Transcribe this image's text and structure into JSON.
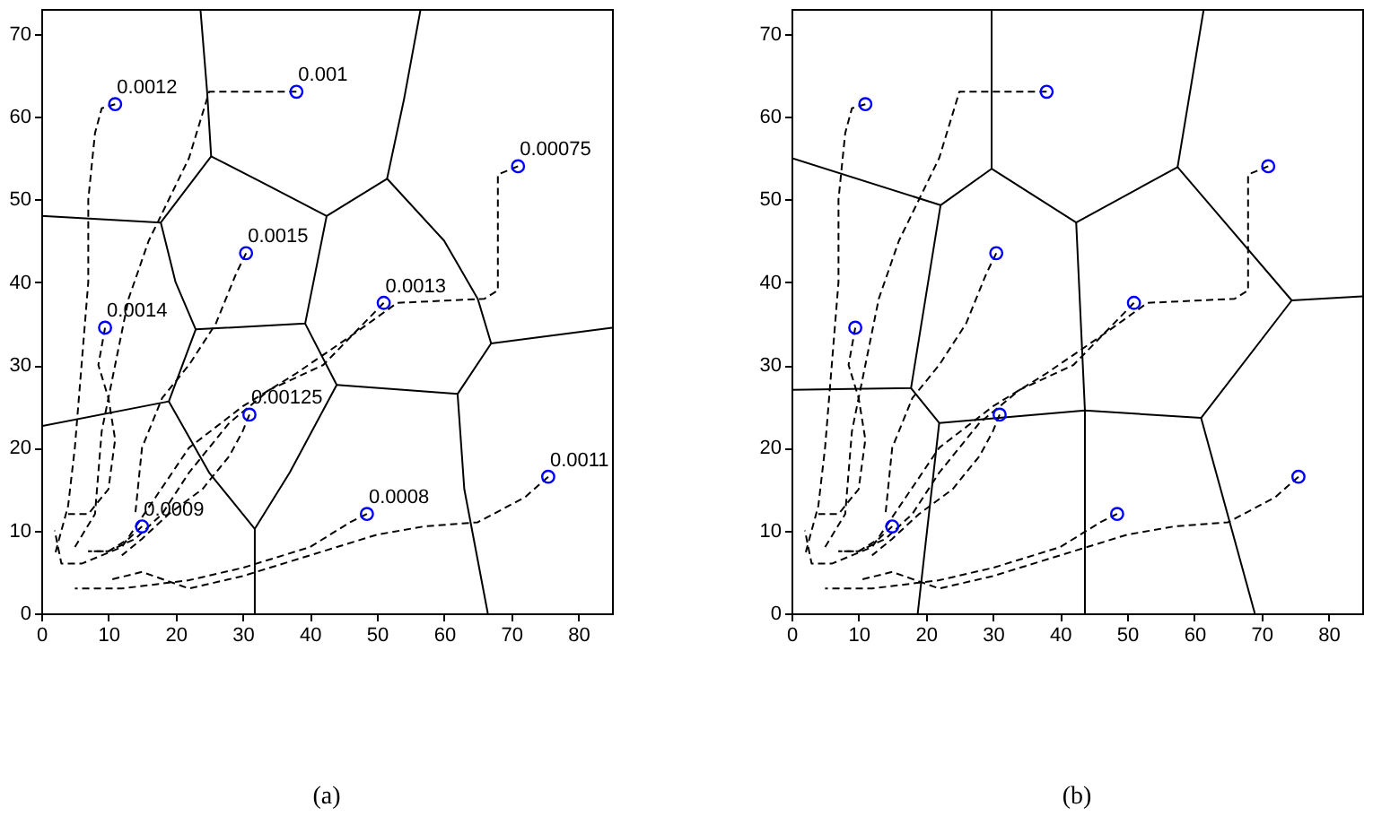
{
  "chart_data": [
    {
      "type": "scatter",
      "title": "(a)",
      "xlim": [
        0,
        85
      ],
      "ylim": [
        0,
        73
      ],
      "xticks": [
        0,
        10,
        20,
        30,
        40,
        50,
        60,
        70,
        80
      ],
      "yticks": [
        0,
        10,
        20,
        30,
        40,
        50,
        60,
        70
      ],
      "grid": false,
      "series": [
        {
          "type": "line",
          "line_style": "solid",
          "color": "#000000",
          "x": [
            23.7,
            24.7,
            25.3
          ],
          "values": [
            73,
            63,
            55.2
          ]
        },
        {
          "type": "line",
          "line_style": "solid",
          "color": "#000000",
          "x": [
            0,
            17.8,
            25.3,
            33,
            42.5,
            51.5
          ],
          "values": [
            48,
            47.2,
            55.2,
            52,
            48,
            52.5
          ]
        },
        {
          "type": "line",
          "line_style": "solid",
          "color": "#000000",
          "x": [
            56.5,
            54,
            51.5,
            60,
            65,
            67,
            85
          ],
          "values": [
            73,
            62,
            52.5,
            45,
            38,
            32.6,
            34.5
          ]
        },
        {
          "type": "line",
          "line_style": "solid",
          "color": "#000000",
          "x": [
            17.8,
            20,
            23,
            39.3,
            42.5
          ],
          "values": [
            47.2,
            40,
            34.3,
            35,
            48
          ]
        },
        {
          "type": "line",
          "line_style": "solid",
          "color": "#000000",
          "x": [
            0,
            19,
            23
          ],
          "values": [
            22.6,
            25.6,
            34.3
          ]
        },
        {
          "type": "line",
          "line_style": "solid",
          "color": "#000000",
          "x": [
            19,
            25,
            31.8,
            37,
            44,
            39.3
          ],
          "values": [
            25.6,
            17,
            10.2,
            17,
            27.6,
            35
          ]
        },
        {
          "type": "line",
          "line_style": "solid",
          "color": "#000000",
          "x": [
            31.8,
            31.8
          ],
          "values": [
            10.2,
            0
          ]
        },
        {
          "type": "line",
          "line_style": "solid",
          "color": "#000000",
          "x": [
            44,
            62,
            67
          ],
          "values": [
            27.6,
            26.5,
            32.6
          ]
        },
        {
          "type": "line",
          "line_style": "solid",
          "color": "#000000",
          "x": [
            62,
            63,
            66.5
          ],
          "values": [
            26.5,
            15,
            0
          ]
        },
        {
          "type": "line",
          "line_style": "dashed",
          "color": "#000000",
          "x": [
            11,
            9,
            8,
            7,
            7,
            6,
            5,
            4,
            2
          ],
          "values": [
            61.5,
            61,
            58,
            50,
            40,
            30,
            20,
            13,
            7
          ]
        },
        {
          "type": "line",
          "line_style": "dashed",
          "color": "#000000",
          "x": [
            38,
            25,
            22,
            16,
            13,
            11,
            9,
            8,
            5
          ],
          "values": [
            63,
            63,
            55,
            45,
            38,
            30,
            22,
            12,
            8
          ]
        },
        {
          "type": "line",
          "line_style": "dashed",
          "color": "#000000",
          "x": [
            71,
            68,
            68,
            66,
            53,
            47,
            38,
            30,
            22,
            17,
            12,
            6,
            3,
            2
          ],
          "values": [
            54,
            53,
            39,
            38,
            37.5,
            34,
            29,
            25,
            20,
            14,
            8,
            6,
            6,
            10
          ]
        },
        {
          "type": "line",
          "line_style": "dashed",
          "color": "#000000",
          "x": [
            51,
            48,
            42,
            34,
            28,
            22,
            18,
            14,
            10,
            7
          ],
          "values": [
            37.5,
            35,
            30,
            27,
            23,
            17,
            12,
            9,
            7.5,
            7.5
          ]
        },
        {
          "type": "line",
          "line_style": "dashed",
          "color": "#000000",
          "x": [
            30.5,
            29,
            26,
            22,
            18,
            15,
            14
          ],
          "values": [
            43.5,
            41,
            35,
            30,
            26,
            20,
            12
          ]
        },
        {
          "type": "line",
          "line_style": "dashed",
          "color": "#000000",
          "x": [
            9.5,
            8.5,
            10,
            11,
            10,
            7,
            4
          ],
          "values": [
            34.5,
            30,
            26,
            21,
            15,
            12,
            12
          ]
        },
        {
          "type": "line",
          "line_style": "dashed",
          "color": "#000000",
          "x": [
            31,
            30,
            28,
            24,
            19,
            15,
            12
          ],
          "values": [
            24,
            22,
            19,
            15,
            12,
            9,
            7
          ]
        },
        {
          "type": "line",
          "line_style": "dashed",
          "color": "#000000",
          "x": [
            15,
            13,
            10,
            7
          ],
          "values": [
            10.5,
            9,
            7.5,
            7.5
          ]
        },
        {
          "type": "line",
          "line_style": "dashed",
          "color": "#000000",
          "x": [
            48.5,
            46,
            40,
            30,
            22,
            12,
            5
          ],
          "values": [
            12,
            11,
            8,
            5.5,
            4,
            3,
            3
          ]
        },
        {
          "type": "line",
          "line_style": "dashed",
          "color": "#000000",
          "x": [
            75.5,
            72,
            65,
            57,
            50,
            40,
            30,
            22,
            15,
            10
          ],
          "values": [
            16.5,
            14,
            11,
            10.5,
            9.5,
            7,
            4.5,
            3,
            5,
            4
          ]
        },
        {
          "marker": "circle",
          "color": "#0000ff",
          "x": [
            11,
            38,
            71,
            30.5,
            9.5,
            51,
            31,
            15,
            48.5,
            75.5
          ],
          "values": [
            61.5,
            63,
            54,
            43.5,
            34.5,
            37.5,
            24,
            10.5,
            12,
            16.5
          ]
        }
      ],
      "annotations": [
        {
          "text": "0.0012",
          "x": 11,
          "y": 61.5
        },
        {
          "text": "0.001",
          "x": 38,
          "y": 63
        },
        {
          "text": "0.00075",
          "x": 71,
          "y": 54
        },
        {
          "text": "0.0015",
          "x": 30.5,
          "y": 43.5
        },
        {
          "text": "0.0014",
          "x": 9.5,
          "y": 34.5
        },
        {
          "text": "0.0013",
          "x": 51,
          "y": 37.5
        },
        {
          "text": "0.00125",
          "x": 31,
          "y": 24
        },
        {
          "text": "0.0009",
          "x": 15,
          "y": 10.5
        },
        {
          "text": "0.0008",
          "x": 48.5,
          "y": 12
        },
        {
          "text": "0.0011",
          "x": 75.5,
          "y": 16.5
        }
      ]
    },
    {
      "type": "scatter",
      "title": "(b)",
      "xlim": [
        0,
        85
      ],
      "ylim": [
        0,
        73
      ],
      "xticks": [
        0,
        10,
        20,
        30,
        40,
        50,
        60,
        70,
        80
      ],
      "yticks": [
        0,
        10,
        20,
        30,
        40,
        50,
        60,
        70
      ],
      "grid": false,
      "series": [
        {
          "type": "line",
          "line_style": "solid",
          "color": "#000000",
          "x": [
            0,
            22.2,
            29.8,
            42.4,
            57.5,
            74.5,
            85
          ],
          "values": [
            55,
            49.3,
            53.7,
            47.2,
            53.9,
            37.8,
            38.3
          ]
        },
        {
          "type": "line",
          "line_style": "solid",
          "color": "#000000",
          "x": [
            29.8,
            29.8
          ],
          "values": [
            53.7,
            73
          ]
        },
        {
          "type": "line",
          "line_style": "solid",
          "color": "#000000",
          "x": [
            57.5,
            61.4
          ],
          "values": [
            53.9,
            73
          ]
        },
        {
          "type": "line",
          "line_style": "solid",
          "color": "#000000",
          "x": [
            22.2,
            17.8,
            0
          ],
          "values": [
            49.3,
            27.2,
            27
          ]
        },
        {
          "type": "line",
          "line_style": "solid",
          "color": "#000000",
          "x": [
            17.8,
            22,
            43.7,
            61,
            74.5
          ],
          "values": [
            27.2,
            23,
            24.5,
            23.6,
            37.8
          ]
        },
        {
          "type": "line",
          "line_style": "solid",
          "color": "#000000",
          "x": [
            42.4,
            43.7,
            43.7
          ],
          "values": [
            47.2,
            24.5,
            0
          ]
        },
        {
          "type": "line",
          "line_style": "solid",
          "color": "#000000",
          "x": [
            22,
            18.8
          ],
          "values": [
            23,
            0
          ]
        },
        {
          "type": "line",
          "line_style": "solid",
          "color": "#000000",
          "x": [
            61,
            69
          ],
          "values": [
            23.6,
            0
          ]
        },
        {
          "type": "line",
          "line_style": "dashed",
          "color": "#000000",
          "x": [
            11,
            9,
            8,
            7,
            7,
            6,
            5,
            4,
            2
          ],
          "values": [
            61.5,
            61,
            58,
            50,
            40,
            30,
            20,
            13,
            7
          ]
        },
        {
          "type": "line",
          "line_style": "dashed",
          "color": "#000000",
          "x": [
            38,
            25,
            22,
            16,
            13,
            11,
            9,
            8,
            5
          ],
          "values": [
            63,
            63,
            55,
            45,
            38,
            30,
            22,
            12,
            8
          ]
        },
        {
          "type": "line",
          "line_style": "dashed",
          "color": "#000000",
          "x": [
            71,
            68,
            68,
            66,
            53,
            47,
            38,
            30,
            22,
            17,
            12,
            6,
            3,
            2
          ],
          "values": [
            54,
            53,
            39,
            38,
            37.5,
            34,
            29,
            25,
            20,
            14,
            8,
            6,
            6,
            10
          ]
        },
        {
          "type": "line",
          "line_style": "dashed",
          "color": "#000000",
          "x": [
            51,
            48,
            42,
            34,
            28,
            22,
            18,
            14,
            10,
            7
          ],
          "values": [
            37.5,
            35,
            30,
            27,
            23,
            17,
            12,
            9,
            7.5,
            7.5
          ]
        },
        {
          "type": "line",
          "line_style": "dashed",
          "color": "#000000",
          "x": [
            30.5,
            29,
            26,
            22,
            18,
            15,
            14
          ],
          "values": [
            43.5,
            41,
            35,
            30,
            26,
            20,
            12
          ]
        },
        {
          "type": "line",
          "line_style": "dashed",
          "color": "#000000",
          "x": [
            9.5,
            8.5,
            10,
            11,
            10,
            7,
            4
          ],
          "values": [
            34.5,
            30,
            26,
            21,
            15,
            12,
            12
          ]
        },
        {
          "type": "line",
          "line_style": "dashed",
          "color": "#000000",
          "x": [
            31,
            30,
            28,
            24,
            19,
            15,
            12
          ],
          "values": [
            24,
            22,
            19,
            15,
            12,
            9,
            7
          ]
        },
        {
          "type": "line",
          "line_style": "dashed",
          "color": "#000000",
          "x": [
            15,
            13,
            10,
            7
          ],
          "values": [
            10.5,
            9,
            7.5,
            7.5
          ]
        },
        {
          "type": "line",
          "line_style": "dashed",
          "color": "#000000",
          "x": [
            48.5,
            46,
            40,
            30,
            22,
            12,
            5
          ],
          "values": [
            12,
            11,
            8,
            5.5,
            4,
            3,
            3
          ]
        },
        {
          "type": "line",
          "line_style": "dashed",
          "color": "#000000",
          "x": [
            75.5,
            72,
            65,
            57,
            50,
            40,
            30,
            22,
            15,
            10
          ],
          "values": [
            16.5,
            14,
            11,
            10.5,
            9.5,
            7,
            4.5,
            3,
            5,
            4
          ]
        },
        {
          "marker": "circle",
          "color": "#0000ff",
          "x": [
            11,
            38,
            71,
            30.5,
            9.5,
            51,
            31,
            15,
            48.5,
            75.5
          ],
          "values": [
            61.5,
            63,
            54,
            43.5,
            34.5,
            37.5,
            24,
            10.5,
            12,
            16.5
          ]
        }
      ]
    }
  ]
}
